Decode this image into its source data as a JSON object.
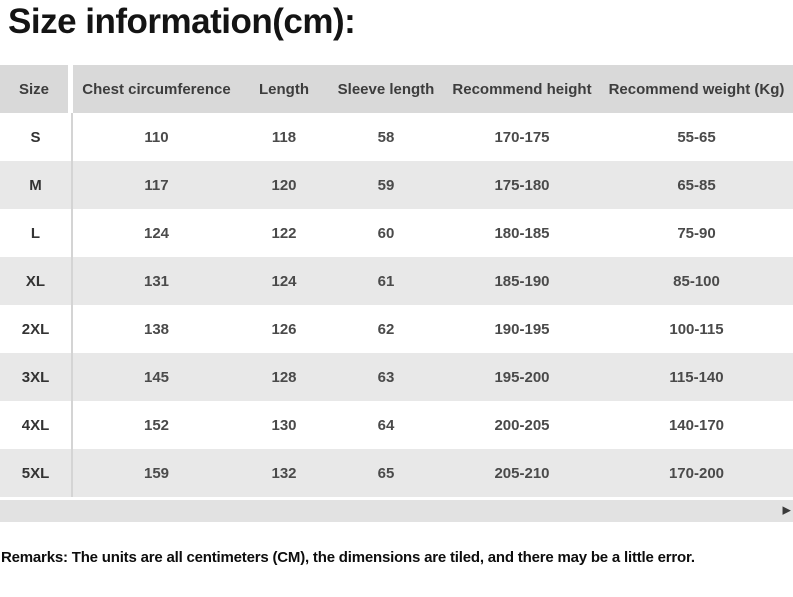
{
  "page": {
    "title": "Size information(cm):",
    "remarks": "Remarks: The units are all centimeters (CM), the dimensions are tiled, and there may be a little error."
  },
  "table": {
    "columns": [
      "Size",
      "Chest circumference",
      "Length",
      "Sleeve length",
      "Recommend height",
      "Recommend weight (Kg)"
    ],
    "rows": [
      {
        "size": "S",
        "values": [
          "110",
          "118",
          "58",
          "170-175",
          "55-65"
        ]
      },
      {
        "size": "M",
        "values": [
          "117",
          "120",
          "59",
          "175-180",
          "65-85"
        ]
      },
      {
        "size": "L",
        "values": [
          "124",
          "122",
          "60",
          "180-185",
          "75-90"
        ]
      },
      {
        "size": "XL",
        "values": [
          "131",
          "124",
          "61",
          "185-190",
          "85-100"
        ]
      },
      {
        "size": "2XL",
        "values": [
          "138",
          "126",
          "62",
          "190-195",
          "100-115"
        ]
      },
      {
        "size": "3XL",
        "values": [
          "145",
          "128",
          "63",
          "195-200",
          "115-140"
        ]
      },
      {
        "size": "4XL",
        "values": [
          "152",
          "130",
          "64",
          "200-205",
          "140-170"
        ]
      },
      {
        "size": "5XL",
        "values": [
          "159",
          "132",
          "65",
          "205-210",
          "170-200"
        ]
      }
    ]
  },
  "scrollbar": {
    "right_arrow": "▶"
  },
  "colors": {
    "header_bg": "#d9d9d9",
    "row_alt_bg": "#e8e8e8",
    "row_bg": "#ffffff",
    "scroll_track": "#e2e2e2",
    "title_text": "#141414",
    "cell_text": "#4a4a4a"
  }
}
